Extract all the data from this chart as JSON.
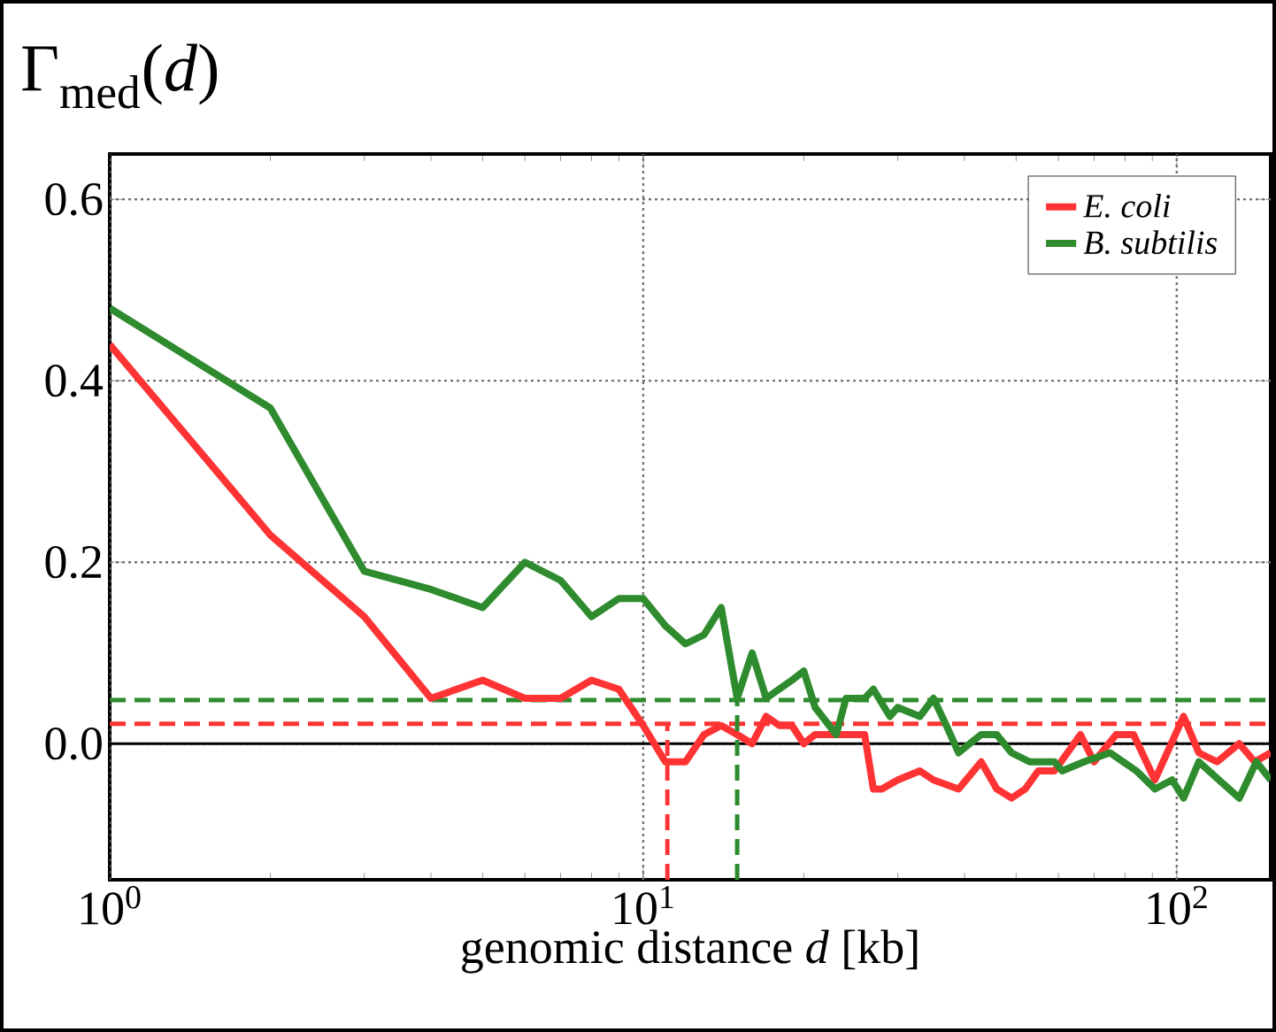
{
  "chart_data": {
    "type": "line",
    "title": "Γ$_{med}$(*d*)",
    "xlabel": "genomic distance *d* [kb]",
    "log": "x",
    "grid": true,
    "legend": "top right",
    "line_style": "solid",
    "xlim": [
      1,
      150
    ],
    "ylim": [
      -0.15,
      0.65
    ],
    "xticks": [
      {
        "value": 1,
        "label": "10$^{0}$"
      },
      {
        "value": 10,
        "label": "10$^{1}$"
      },
      {
        "value": 100,
        "label": "10$^{2}$"
      }
    ],
    "yticks": [
      {
        "value": 0,
        "label": "0.0"
      },
      {
        "value": 0.2,
        "label": "0.2"
      },
      {
        "value": 0.4,
        "label": "0.4"
      },
      {
        "value": 0.6,
        "label": "0.6"
      }
    ],
    "series": [
      {
        "name": "E. coli",
        "color": "#ff3333",
        "x": [
          1,
          2,
          3,
          4,
          5,
          6,
          7,
          8,
          9,
          10,
          11,
          12,
          13,
          14,
          15,
          16,
          17,
          18,
          19,
          20,
          21,
          22,
          23,
          24,
          25,
          26,
          27,
          28,
          30,
          33,
          35,
          39,
          43,
          46,
          49,
          52,
          55,
          59,
          66,
          70,
          77,
          83,
          91,
          103,
          110,
          119,
          131,
          140,
          150
        ],
        "values": [
          0.44,
          0.23,
          0.14,
          0.05,
          0.07,
          0.05,
          0.05,
          0.07,
          0.06,
          0.02,
          -0.02,
          -0.02,
          0.01,
          0.02,
          0.01,
          0.0,
          0.03,
          0.02,
          0.02,
          0.0,
          0.01,
          0.01,
          0.01,
          0.01,
          0.01,
          0.01,
          -0.05,
          -0.05,
          -0.04,
          -0.03,
          -0.04,
          -0.05,
          -0.02,
          -0.05,
          -0.06,
          -0.05,
          -0.03,
          -0.03,
          0.01,
          -0.02,
          0.01,
          0.01,
          -0.04,
          0.03,
          -0.01,
          -0.02,
          0.0,
          -0.02,
          -0.01
        ]
      },
      {
        "name": "B. subtilis",
        "color": "#2e8b2e",
        "x": [
          1,
          2,
          3,
          4,
          5,
          6,
          7,
          8,
          9,
          10,
          11,
          12,
          13,
          14,
          15,
          16,
          17,
          19,
          20,
          21,
          23,
          24,
          26,
          27,
          29,
          30,
          33,
          35,
          37,
          39,
          43,
          46,
          49,
          53,
          59,
          61,
          67,
          75,
          84,
          91,
          98,
          103,
          110,
          120,
          131,
          141,
          150
        ],
        "values": [
          0.48,
          0.37,
          0.19,
          0.17,
          0.15,
          0.2,
          0.18,
          0.14,
          0.16,
          0.16,
          0.13,
          0.11,
          0.12,
          0.15,
          0.05,
          0.1,
          0.05,
          0.07,
          0.08,
          0.04,
          0.01,
          0.05,
          0.05,
          0.06,
          0.03,
          0.04,
          0.03,
          0.05,
          0.02,
          -0.01,
          0.01,
          0.01,
          -0.01,
          -0.02,
          -0.02,
          -0.03,
          -0.02,
          -0.01,
          -0.03,
          -0.05,
          -0.04,
          -0.06,
          -0.02,
          -0.04,
          -0.06,
          -0.02,
          -0.04
        ]
      },
      {
        "color": "#ff3333",
        "line_style": "dashed",
        "x": [
          11.1,
          11.1
        ],
        "values": [
          -0.15,
          0.022
        ]
      },
      {
        "color": "#2e8b2e",
        "line_style": "dashed",
        "x": [
          15,
          15
        ],
        "values": [
          -0.15,
          0.048
        ]
      }
    ],
    "ref_lines": [
      {
        "axis": "y",
        "value": 0,
        "color": "#000000",
        "line_style": "solid"
      },
      {
        "axis": "y",
        "value": 0.022,
        "color": "#ff3333",
        "line_style": "dashed"
      },
      {
        "axis": "y",
        "value": 0.048,
        "color": "#2e8b2e",
        "line_style": "dashed"
      }
    ]
  }
}
